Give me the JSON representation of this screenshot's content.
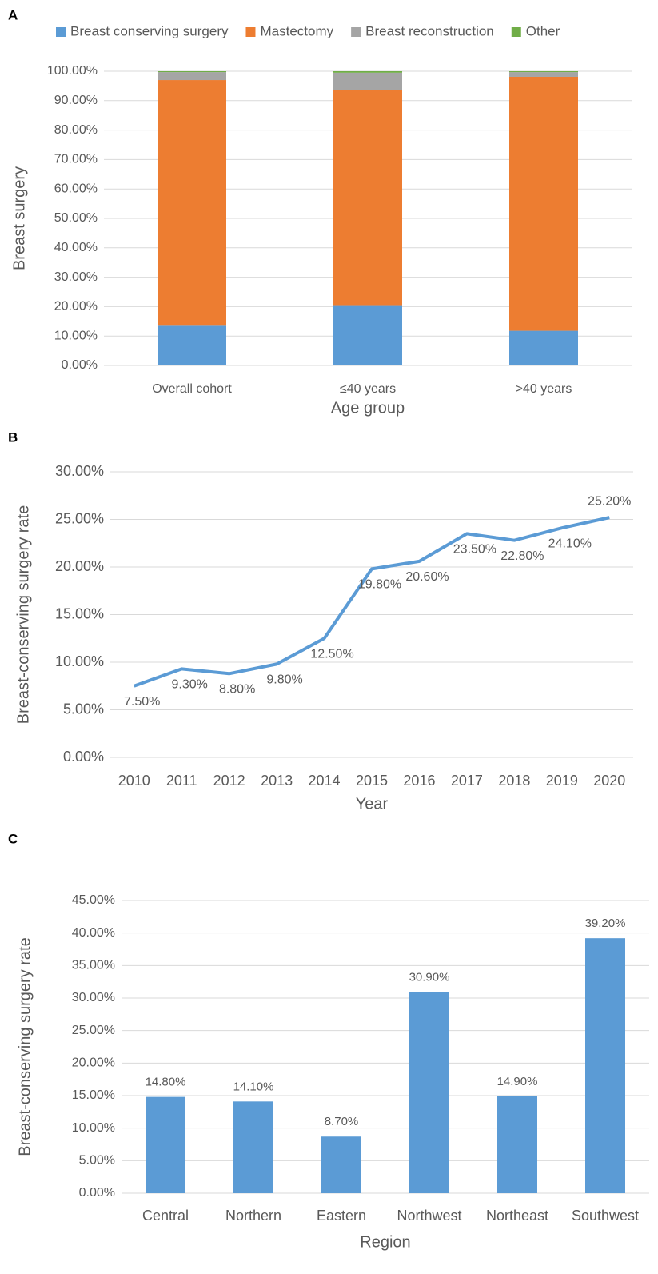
{
  "chart_data": [
    {
      "type": "stacked_bar",
      "label": "A",
      "x_label": "Age group",
      "y_label": "Breast surgery",
      "categories": [
        "Overall cohort",
        "≤40 years",
        ">40 years"
      ],
      "series": [
        {
          "name": "Breast conserving surgery",
          "color": "#5b9bd5",
          "values": [
            13.5,
            20.5,
            11.8
          ]
        },
        {
          "name": "Mastectomy",
          "color": "#ed7d31",
          "values": [
            83.5,
            73.0,
            86.3
          ]
        },
        {
          "name": "Breast reconstruction",
          "color": "#a5a5a5",
          "values": [
            2.7,
            6.0,
            1.6
          ]
        },
        {
          "name": "Other",
          "color": "#70ad47",
          "values": [
            0.3,
            0.5,
            0.3
          ]
        }
      ],
      "ylim": [
        0,
        100
      ],
      "yticks": [
        {
          "value": 0,
          "label": "0.00%"
        },
        {
          "value": 10,
          "label": "10.00%"
        },
        {
          "value": 20,
          "label": "20.00%"
        },
        {
          "value": 30,
          "label": "30.00%"
        },
        {
          "value": 40,
          "label": "40.00%"
        },
        {
          "value": 50,
          "label": "50.00%"
        },
        {
          "value": 60,
          "label": "60.00%"
        },
        {
          "value": 70,
          "label": "70.00%"
        },
        {
          "value": 80,
          "label": "80.00%"
        },
        {
          "value": 90,
          "label": "90.00%"
        },
        {
          "value": 100,
          "label": "100.00%"
        }
      ],
      "grid": true,
      "legend": "top"
    },
    {
      "type": "line",
      "label": "B",
      "x_label": "Year",
      "y_label": "Breast-conserving surgery rate",
      "categories": [
        "2010",
        "2011",
        "2012",
        "2013",
        "2014",
        "2015",
        "2016",
        "2017",
        "2018",
        "2019",
        "2020"
      ],
      "values": [
        7.5,
        9.3,
        8.8,
        9.8,
        12.5,
        19.8,
        20.6,
        23.5,
        22.8,
        24.1,
        25.2
      ],
      "value_labels": [
        "7.50%",
        "9.30%",
        "8.80%",
        "9.80%",
        "12.50%",
        "19.80%",
        "20.60%",
        "23.50%",
        "22.80%",
        "24.10%",
        "25.20%"
      ],
      "color": "#5b9bd5",
      "ylim": [
        0,
        30
      ],
      "yticks": [
        {
          "value": 0,
          "label": "0.00%"
        },
        {
          "value": 5,
          "label": "5.00%"
        },
        {
          "value": 10,
          "label": "10.00%"
        },
        {
          "value": 15,
          "label": "15.00%"
        },
        {
          "value": 20,
          "label": "20.00%"
        },
        {
          "value": 25,
          "label": "25.00%"
        },
        {
          "value": 30,
          "label": "30.00%"
        }
      ],
      "grid": true
    },
    {
      "type": "bar",
      "label": "C",
      "x_label": "Region",
      "y_label": "Breast-conserving surgery rate",
      "categories": [
        "Central",
        "Northern",
        "Eastern",
        "Northwest",
        "Northeast",
        "Southwest"
      ],
      "values": [
        14.8,
        14.1,
        8.7,
        30.9,
        14.9,
        39.2
      ],
      "value_labels": [
        "14.80%",
        "14.10%",
        "8.70%",
        "30.90%",
        "14.90%",
        "39.20%"
      ],
      "color": "#5b9bd5",
      "ylim": [
        0,
        45
      ],
      "yticks": [
        {
          "value": 0,
          "label": "0.00%"
        },
        {
          "value": 5,
          "label": "5.00%"
        },
        {
          "value": 10,
          "label": "10.00%"
        },
        {
          "value": 15,
          "label": "15.00%"
        },
        {
          "value": 20,
          "label": "20.00%"
        },
        {
          "value": 25,
          "label": "25.00%"
        },
        {
          "value": 30,
          "label": "30.00%"
        },
        {
          "value": 35,
          "label": "35.00%"
        },
        {
          "value": 40,
          "label": "40.00%"
        },
        {
          "value": 45,
          "label": "45.00%"
        }
      ],
      "grid": true
    }
  ]
}
